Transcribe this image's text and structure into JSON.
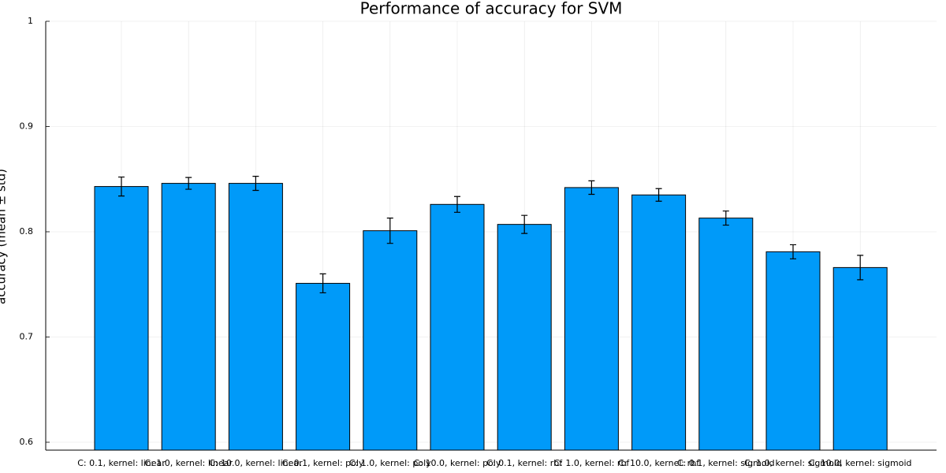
{
  "chart_data": {
    "type": "bar",
    "title": "Performance of accuracy for SVM",
    "y_label": "accuracy (mean ± std)",
    "categories": [
      "C: 0.1, kernel: linear",
      "C: 1.0, kernel: linear",
      "C: 10.0, kernel: linear",
      "C: 0.1, kernel: poly",
      "C: 1.0, kernel: poly",
      "C: 10.0, kernel: poly",
      "C: 0.1, kernel: rbf",
      "C: 1.0, kernel: rbf",
      "C: 10.0, kernel: rbf",
      "C: 0.1, kernel: sigmoid",
      "C: 1.0, kernel: sigmoid",
      "C: 10.0, kernel: sigmoid"
    ],
    "values": [
      0.843,
      0.846,
      0.846,
      0.751,
      0.801,
      0.826,
      0.807,
      0.842,
      0.835,
      0.813,
      0.781,
      0.766
    ],
    "errors": [
      0.009,
      0.0056,
      0.0067,
      0.009,
      0.012,
      0.0075,
      0.0086,
      0.0064,
      0.006,
      0.0067,
      0.0067,
      0.0116
    ],
    "color": "#009af9",
    "ylim": [
      0.5925,
      1.0
    ],
    "yticks": [
      0.6,
      0.7,
      0.8,
      0.9,
      1.0
    ],
    "grid": true
  }
}
